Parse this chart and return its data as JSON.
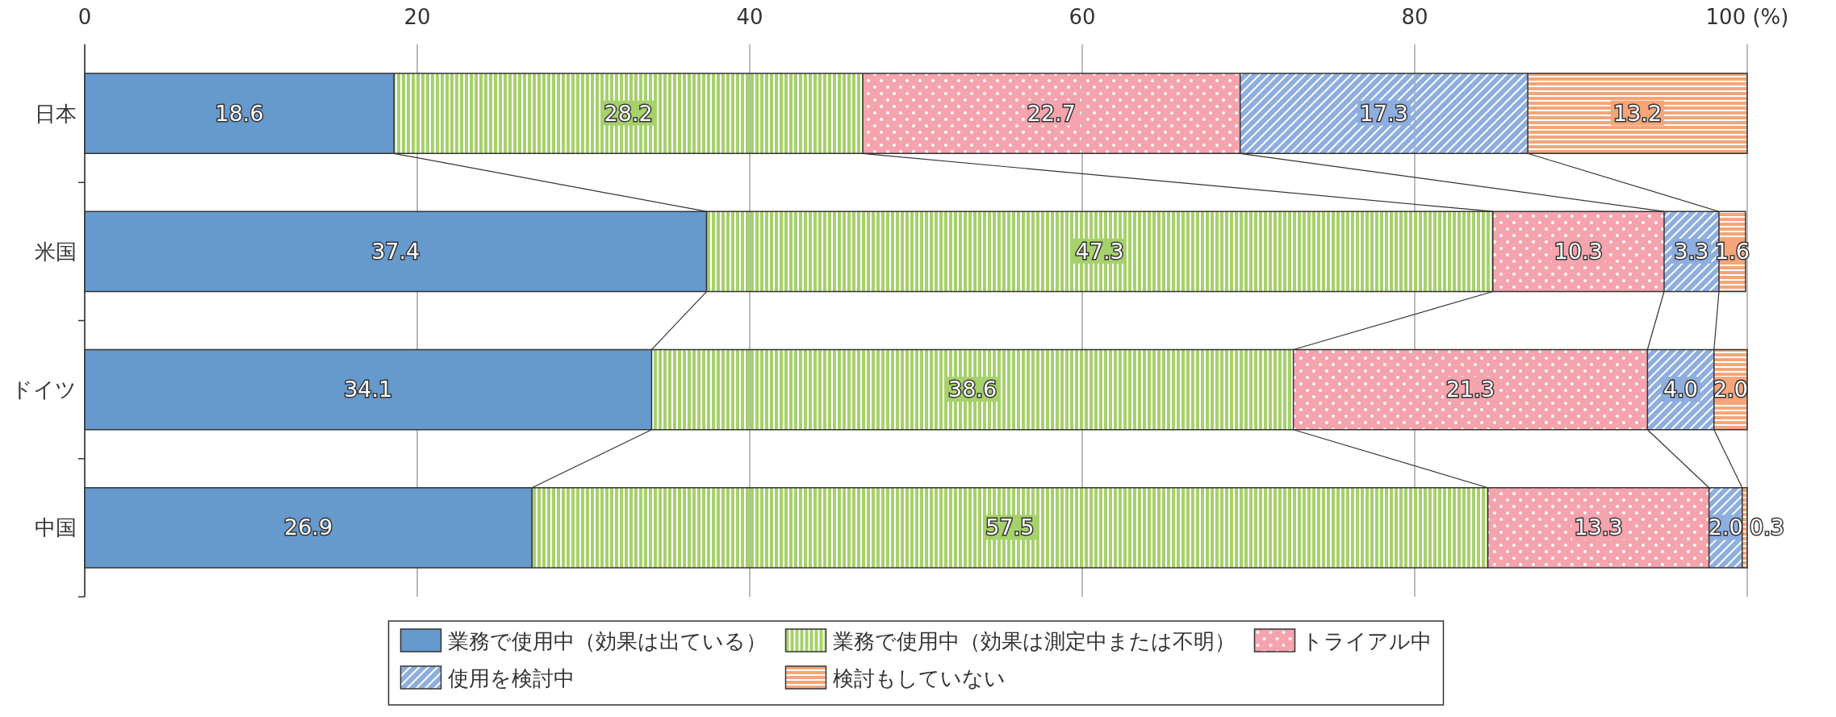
{
  "chart_data": {
    "type": "bar",
    "orientation": "horizontal",
    "stacked": true,
    "categories": [
      "日本",
      "米国",
      "ドイツ",
      "中国"
    ],
    "series": [
      {
        "name": "業務で使用中（効果は出ている）",
        "color": "#6699cc",
        "values": [
          18.6,
          37.4,
          34.1,
          26.9
        ],
        "value_labels": [
          "18.6",
          "37.4",
          "34.1",
          "26.9"
        ]
      },
      {
        "name": "業務で使用中（効果は測定中または不明）",
        "color": "#a6d16b",
        "values": [
          28.2,
          47.3,
          38.6,
          57.5
        ],
        "value_labels": [
          "28.2",
          "47.3",
          "38.6",
          "57.5"
        ]
      },
      {
        "name": "トライアル中",
        "color": "#f5a3ad",
        "values": [
          22.7,
          10.3,
          21.3,
          13.3
        ],
        "value_labels": [
          "22.7",
          "10.3",
          "21.3",
          "13.3"
        ]
      },
      {
        "name": "使用を検討中",
        "color": "#8eaee0",
        "values": [
          17.3,
          3.3,
          4.0,
          2.0
        ],
        "value_labels": [
          "17.3",
          "3.3",
          "4.0",
          "2.0"
        ]
      },
      {
        "name": "検討もしていない",
        "color": "#f5a578",
        "values": [
          13.2,
          1.6,
          2.0,
          0.3
        ],
        "value_labels": [
          "13.2",
          "1.6",
          "2.0",
          "0.3"
        ]
      }
    ],
    "xlim": [
      0,
      100
    ],
    "xticks": [
      0,
      20,
      40,
      60,
      80,
      {
        "value": 100,
        "label": "100 (%)"
      }
    ],
    "grid": "x",
    "data_labels": true,
    "legend": "bottom"
  }
}
